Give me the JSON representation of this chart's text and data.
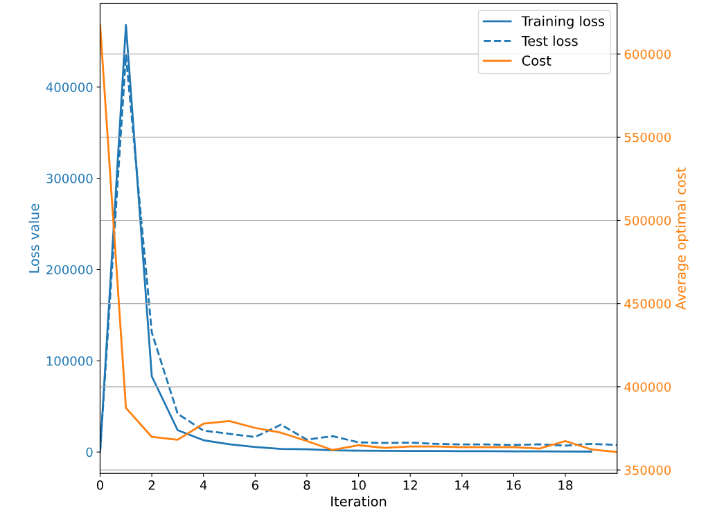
{
  "chart_data": {
    "type": "line",
    "xlabel": "Iteration",
    "ylabel": "Loss value",
    "y2label": "Average optimal cost",
    "x": [
      0,
      1,
      2,
      3,
      4,
      5,
      6,
      7,
      8,
      9,
      10,
      11,
      12,
      13,
      14,
      15,
      16,
      17,
      18,
      19,
      20
    ],
    "xlim": [
      0,
      20
    ],
    "xticks": [
      0,
      2,
      4,
      6,
      8,
      10,
      12,
      14,
      16,
      18
    ],
    "ylim": [
      -23400,
      491400
    ],
    "yticks": [
      0,
      100000,
      200000,
      300000,
      400000
    ],
    "y2lim": [
      347950,
      630250
    ],
    "y2ticks": [
      350000,
      400000,
      450000,
      500000,
      550000,
      600000
    ],
    "grid": "y2",
    "legend": "top right",
    "series": [
      {
        "name": "Training loss",
        "color": "#1f77b4",
        "line_style": "solid",
        "values": [
          0,
          468000,
          83000,
          24000,
          13000,
          8500,
          5500,
          3500,
          3000,
          2000,
          1500,
          1300,
          1200,
          1100,
          1000,
          900,
          800,
          700,
          600,
          500,
          null
        ]
      },
      {
        "name": "Test loss",
        "color": "#1f77b4",
        "line_style": "dashed",
        "values": [
          0,
          435000,
          131000,
          42000,
          23500,
          20000,
          16500,
          30000,
          13600,
          17400,
          10600,
          10000,
          10300,
          9000,
          8300,
          8300,
          7700,
          8500,
          7000,
          9000,
          7700
        ]
      },
      {
        "name": "Cost",
        "color": "#ff7f0e",
        "line_style": "solid",
        "axis": "y2",
        "values": [
          617400,
          387300,
          369900,
          368200,
          377800,
          379400,
          375300,
          372400,
          367400,
          362000,
          364900,
          363300,
          364100,
          364100,
          363700,
          363700,
          363700,
          362900,
          367400,
          362400,
          360800
        ]
      }
    ]
  }
}
